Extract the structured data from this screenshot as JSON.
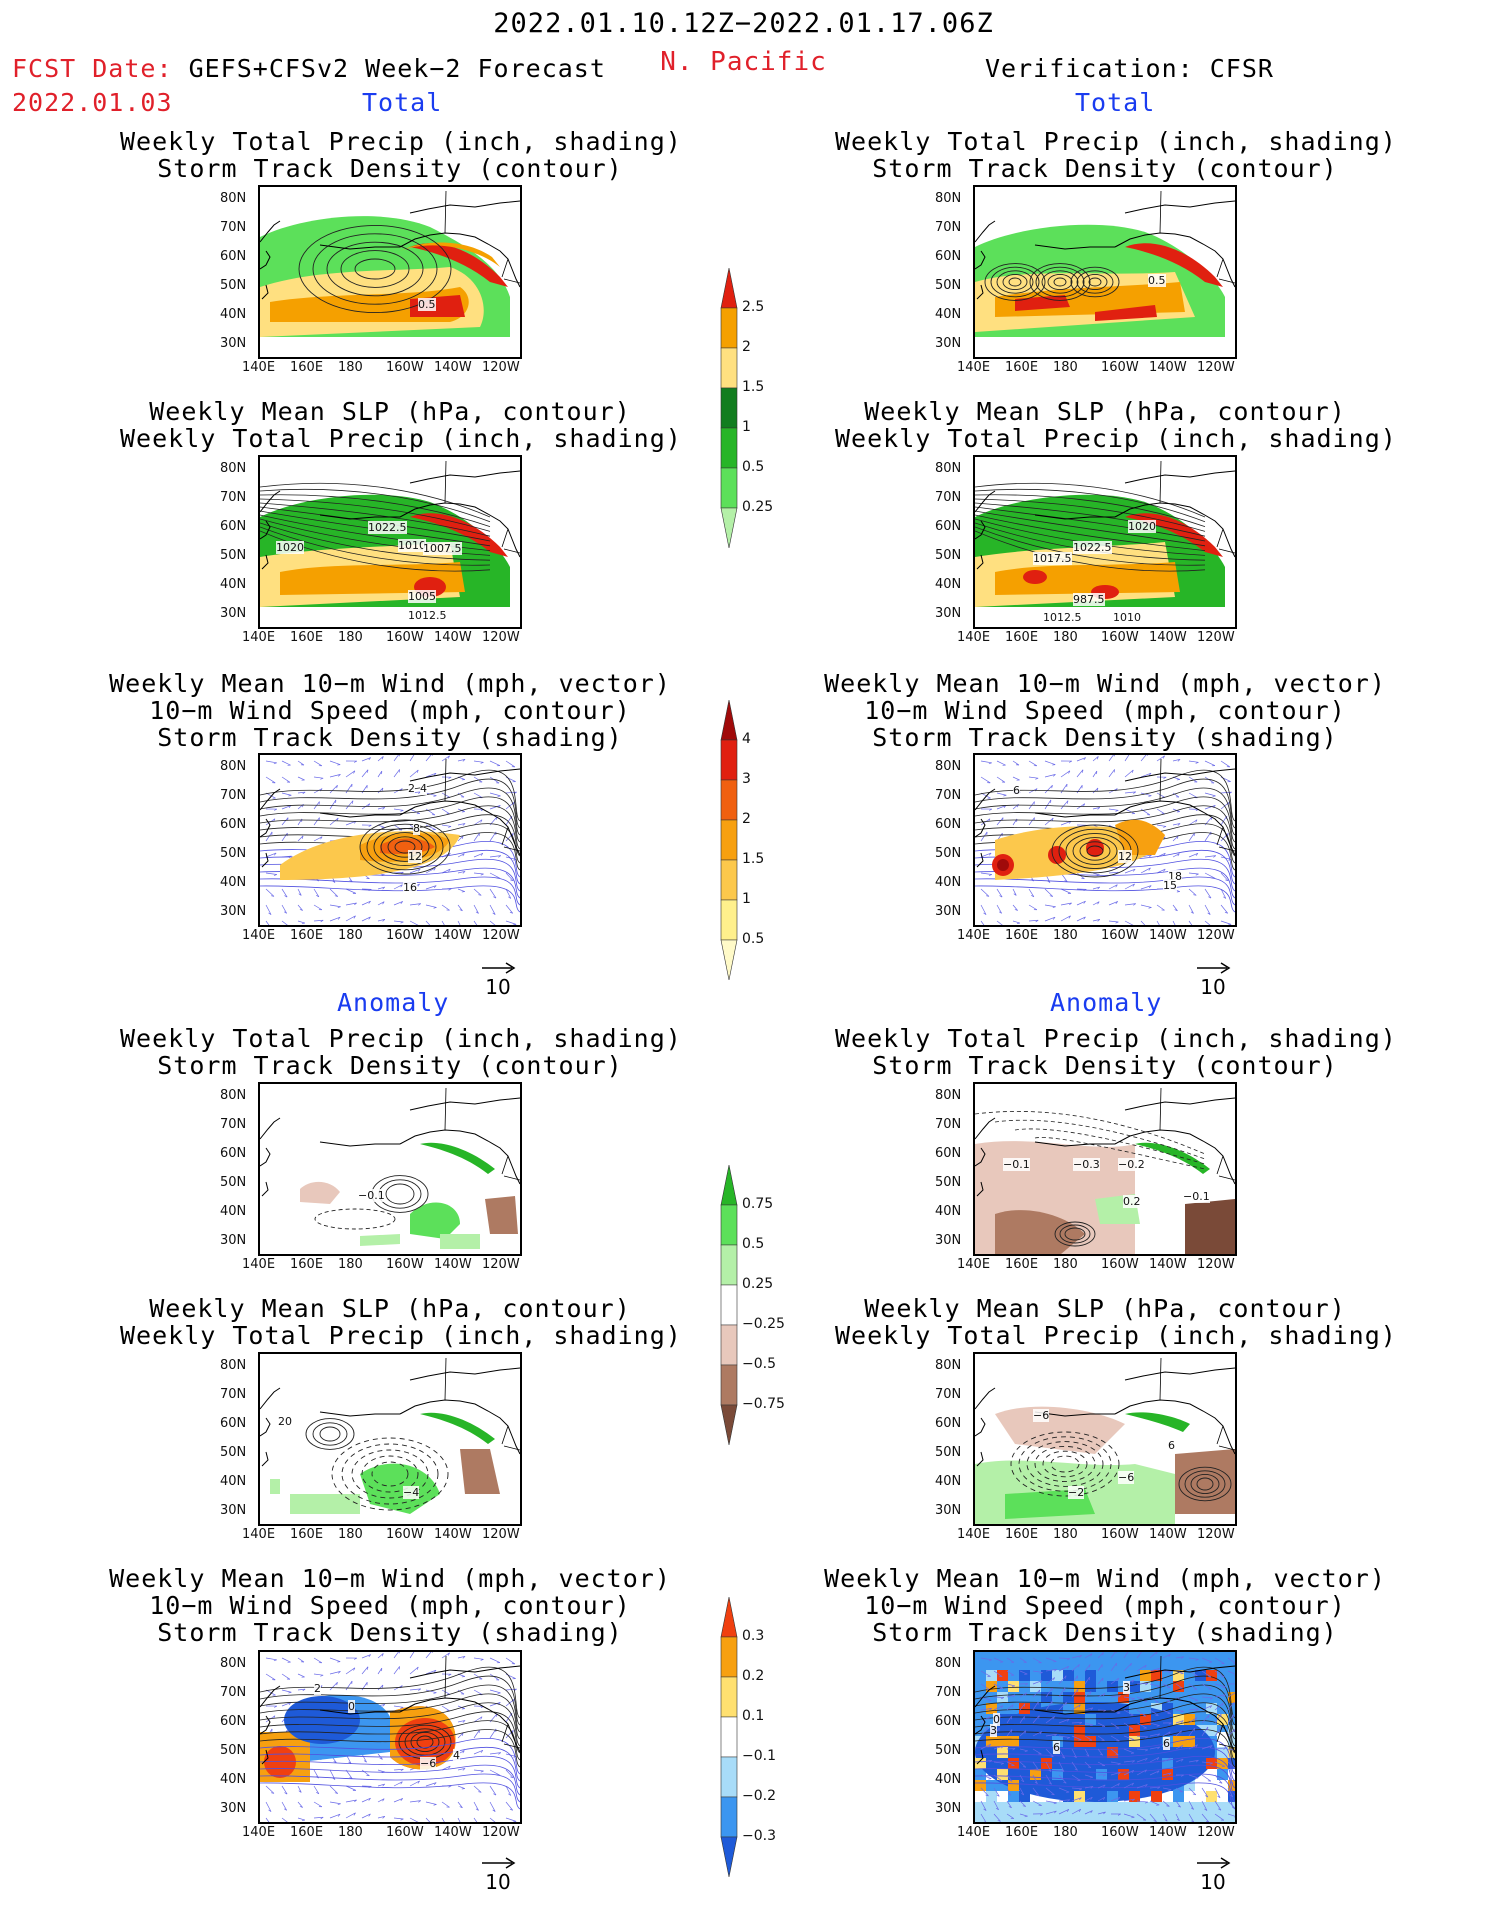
{
  "header": {
    "date_range": "2022.01.10.12Z−2022.01.17.06Z",
    "region": "N. Pacific",
    "fcst_label": "FCST Date:",
    "fcst_model": "GEFS+CFSv2 Week−2 Forecast",
    "fcst_date": "2022.01.03",
    "verification": "Verification: CFSR"
  },
  "sections": {
    "total": "Total",
    "anomaly": "Anomaly"
  },
  "panel_titles": {
    "precip_storm": [
      "Weekly Total Precip (inch, shading)",
      "Storm Track Density (contour)"
    ],
    "slp_precip": [
      "Weekly Mean SLP (hPa, contour)",
      "Weekly Total Precip (inch, shading)"
    ],
    "wind_storm": [
      "Weekly Mean 10−m Wind (mph, vector)",
      "10−m Wind Speed (mph, contour)",
      "Storm Track Density (shading)"
    ]
  },
  "axes": {
    "lat_ticks": [
      "80N",
      "70N",
      "60N",
      "50N",
      "40N",
      "30N"
    ],
    "lon_ticks": [
      "140E",
      "160E",
      "180",
      "160W",
      "140W",
      "120W"
    ]
  },
  "vector_ref": "10",
  "colorbars": {
    "total_precip": {
      "levels": [
        "0.25",
        "0.5",
        "1",
        "1.5",
        "2",
        "2.5"
      ],
      "colors": [
        "#b4f0a8",
        "#5ce05a",
        "#27b527",
        "#117d1f",
        "#ffe080",
        "#f5a000",
        "#e02010"
      ]
    },
    "total_storm": {
      "levels": [
        "0.5",
        "1",
        "1.5",
        "2",
        "3",
        "4"
      ],
      "colors": [
        "#fffac8",
        "#fff08c",
        "#fcc84c",
        "#f7a010",
        "#f06010",
        "#e02010",
        "#a00a0a"
      ]
    },
    "anom_precip": {
      "levels": [
        "−0.75",
        "−0.5",
        "−0.25",
        "0.25",
        "0.5",
        "0.75"
      ],
      "colors": [
        "#7a4a38",
        "#ae7a62",
        "#e8c8bc",
        "#ffffff",
        "#b4f0a8",
        "#5ce05a",
        "#27b527"
      ]
    },
    "anom_storm": {
      "levels": [
        "−0.3",
        "−0.2",
        "−0.1",
        "0.1",
        "0.2",
        "0.3"
      ],
      "colors": [
        "#1e5ad8",
        "#3c96f0",
        "#a8dcf8",
        "#ffffff",
        "#ffe070",
        "#f7a010",
        "#f04010"
      ]
    }
  },
  "contour_labels": {
    "fcst_precip_total": [
      "0.5"
    ],
    "verif_precip_total": [
      "0.5"
    ],
    "fcst_slp_total": [
      "1022.5",
      "1010",
      "1007.5",
      "1020",
      "1005",
      "1012.5"
    ],
    "verif_slp_total": [
      "1020",
      "1022.5",
      "1017.5",
      "987.5",
      "1010",
      "1012.5"
    ],
    "fcst_wind_total": [
      "2",
      "4",
      "8",
      "12",
      "16"
    ],
    "verif_wind_total": [
      "6",
      "12",
      "18",
      "15"
    ],
    "fcst_precip_anom": [
      "−0.1"
    ],
    "verif_precip_anom": [
      "−0.1",
      "−0.3",
      "−0.2",
      "0.2",
      "−0.1"
    ],
    "fcst_slp_anom": [
      "−4",
      "20"
    ],
    "verif_slp_anom": [
      "−6",
      "−2",
      "−6",
      "6"
    ],
    "fcst_wind_anom": [
      "2",
      "0",
      "−6",
      "4"
    ],
    "verif_wind_anom": [
      "3",
      "0",
      "3",
      "6",
      "6"
    ]
  }
}
